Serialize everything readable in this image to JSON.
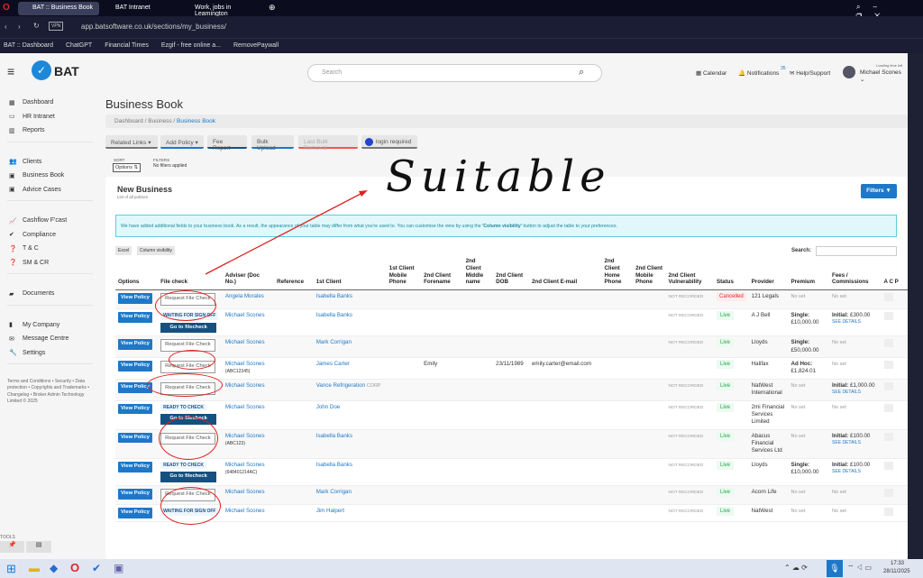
{
  "browser": {
    "tabs": [
      "BAT :: Business Book",
      "BAT Intranet",
      "Work, jobs in Leamington"
    ],
    "url": "app.batsoftware.co.uk/sections/my_business/",
    "vpn": "VPN",
    "bookmarks": [
      "BAT :: Dashboard",
      "ChatGPT",
      "Financial Times",
      "Ezgif - free online a...",
      "RemovePaywall"
    ]
  },
  "header": {
    "logo": "BAT",
    "search_placeholder": "Search",
    "calendar": "Calendar",
    "notifications": "Notifications",
    "notif_count": "35",
    "help": "Help/Support",
    "loading": "Loading time left",
    "user": "Michael Scones"
  },
  "sidebar": {
    "groups": [
      [
        "Dashboard",
        "HR Intranet",
        "Reports"
      ],
      [
        "Clients",
        "Business Book",
        "Advice Cases"
      ],
      [
        "Cashflow F'cast",
        "Compliance",
        "T & C",
        "SM & CR"
      ],
      [
        "Documents"
      ],
      [
        "My Company",
        "Message Centre",
        "Settings"
      ]
    ],
    "icons": [
      [
        "▦",
        "▭",
        "▥"
      ],
      [
        "👥",
        "▣",
        "▣"
      ],
      [
        "📈",
        "✔",
        "❓",
        "❓"
      ],
      [
        "▰"
      ],
      [
        "▮",
        "✉",
        "🔧"
      ]
    ],
    "footer": "Terms and Conditions • Security • Data protection • Copyrights and Trademarks • Changelog • Broker Admin Technology Limited © 2025",
    "tools": "TOOLS"
  },
  "page": {
    "title": "Business Book",
    "breadcrumb": [
      "Dashboard",
      "Business",
      "Business Book"
    ],
    "actions": [
      "Related Links ▾",
      "Add Policy ▾",
      "Fee Report",
      "Bulk Upload",
      "Last Bulk Removal",
      "login required"
    ],
    "sort_label": "SORT",
    "sort_value": "Options ⇅",
    "filters_label": "FILTERS",
    "filters_value": "No filters applied"
  },
  "card": {
    "title": "New Business",
    "subtitle": "List of all policies",
    "filters_btn": "Filters ▼",
    "notice_pre": "We have added additional fields to your business book. As a result, the appearance of your table may differ from what you're used to. You can customise the view by using the ",
    "notice_bold": "'Column visibility'",
    "notice_post": " button to adjust the table to your preferences.",
    "excel": "Excel",
    "colvis": "Column visibility",
    "search_label": "Search:"
  },
  "columns": [
    "Options",
    "File check",
    "Adviser (Doc No.)",
    "Reference",
    "1st Client",
    "1st Client Mobile Phone",
    "2nd Client Forename",
    "2nd Client Middle name",
    "2nd Client DOB",
    "2nd Client E-mail",
    "2nd Client Home Phone",
    "2nd Client Mobile Phone",
    "2nd Client Vulnerability",
    "Status",
    "Provider",
    "Premium",
    "Fees / Commissions",
    "A C P"
  ],
  "labels": {
    "view": "View Policy",
    "request": "Request File Check",
    "goto": "Go to filecheck",
    "not_recorded": "NOT RECORDED",
    "not_set": "No set",
    "see": "SEE DETAILS"
  },
  "rows": [
    {
      "fc": "request",
      "adviser": "Angela Morales",
      "doc": "",
      "client": "Isabella Banks",
      "corp": "",
      "forename": "",
      "dob": "",
      "email": "",
      "vuln": true,
      "status": "Cancelled",
      "provider": "121 Legals",
      "premium": [],
      "fees": ""
    },
    {
      "fc": "WAITING FOR SIGN OFF",
      "go": true,
      "adviser": "Michael Scones",
      "doc": "",
      "client": "Isabella Banks",
      "vuln": true,
      "status": "Live",
      "provider": "A J Bell",
      "premium": [
        "Single:",
        "£10,000.00"
      ],
      "fees": "£300.00"
    },
    {
      "fc": "request",
      "adviser": "Michael Scones",
      "doc": "",
      "client": "Mark Corrigan",
      "vuln": true,
      "status": "Live",
      "provider": "Lloyds",
      "premium": [
        "Single:",
        "£50,000.00"
      ],
      "fees": ""
    },
    {
      "fc": "request",
      "adviser": "Michael Scones",
      "doc": "(ABC12345)",
      "client": "James Carter",
      "forename": "Emily",
      "dob": "23/11/1989",
      "email": "emily.carter@email.com",
      "vuln": false,
      "status": "Live",
      "provider": "Halifax",
      "premium": [
        "Ad Hoc:",
        "£1,824.01"
      ],
      "fees": ""
    },
    {
      "fc": "request",
      "adviser": "Michael Scones",
      "doc": "",
      "client": "Vance Refrigeration",
      "corp": "CORP",
      "vuln": true,
      "status": "Live",
      "provider": "NatWest International",
      "premium": [],
      "fees": "£1,000.00"
    },
    {
      "fc": "READY TO CHECK",
      "go": true,
      "adviser": "Michael Scones",
      "doc": "",
      "client": "John Doe",
      "vuln": true,
      "status": "Live",
      "provider": "2mi Financial Services Limited",
      "premium": [],
      "fees": ""
    },
    {
      "fc": "request",
      "adviser": "Michael Scones",
      "doc": "(ABC123)",
      "client": "Isabella Banks",
      "vuln": true,
      "status": "Live",
      "provider": "Abacus Financial Services Ltd",
      "premium": [],
      "fees": "£100.00"
    },
    {
      "fc": "READY TO CHECK",
      "go": true,
      "adviser": "Michael Scones",
      "doc": "(648401214AC)",
      "client": "Isabella Banks",
      "vuln": true,
      "status": "Live",
      "provider": "Lloyds",
      "premium": [
        "Single:",
        "£10,000.00"
      ],
      "fees": "£100.00"
    },
    {
      "fc": "request",
      "adviser": "Michael Scones",
      "doc": "",
      "client": "Mark Corrigan",
      "vuln": true,
      "status": "Live",
      "provider": "Acorn Life",
      "premium": [],
      "fees": ""
    },
    {
      "fc": "WAITING FOR SIGN OFF",
      "adviser": "Michael Scones",
      "doc": "",
      "client": "Jim Halpert",
      "vuln": true,
      "status": "Live",
      "provider": "NatWest",
      "premium": [],
      "fees": ""
    }
  ],
  "fees_prefix": "Initial:",
  "annotation": {
    "handwriting": "Suitable",
    "color": "#e02020"
  },
  "taskbar": {
    "time": "17:33",
    "date": "28/11/2025"
  }
}
